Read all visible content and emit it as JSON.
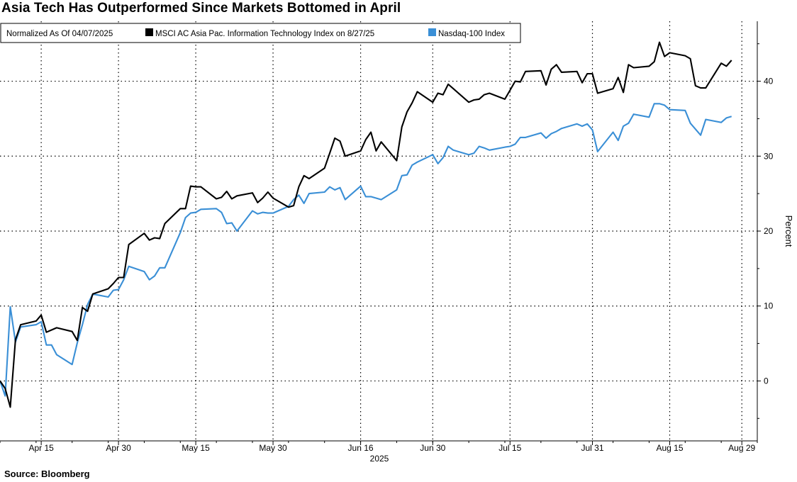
{
  "title": "Asia Tech Has Outperformed Since Markets Bottomed in April",
  "source": "Source: Bloomberg",
  "colors": {
    "msci": "#000000",
    "nasdaq": "#3a8fd6"
  },
  "chart_data": {
    "type": "line",
    "title": "Asia Tech Has Outperformed Since Markets Bottomed in April",
    "subtitle": "Normalized As Of 04/07/2025",
    "ylabel": "Percent",
    "year_label": "2025",
    "ylim": [
      -8,
      48
    ],
    "yticks": [
      0,
      10,
      20,
      30,
      40
    ],
    "grid": true,
    "legend": "top-left",
    "x_tick_labels": [
      "Apr 15",
      "Apr 30",
      "May 15",
      "May 30",
      "Jun 16",
      "Jun 30",
      "Jul 15",
      "Jul 31",
      "Aug 15",
      "Aug 29"
    ],
    "x_tick_dates": [
      "2025-04-15",
      "2025-04-30",
      "2025-05-15",
      "2025-05-30",
      "2025-06-16",
      "2025-06-30",
      "2025-07-15",
      "2025-07-31",
      "2025-08-15",
      "2025-08-29"
    ],
    "xlim": [
      "2025-04-07",
      "2025-09-01"
    ],
    "series": [
      {
        "name": "MSCI AC Asia Pac. Information Technology Index on 8/27/25",
        "dates": [
          "2025-04-07",
          "2025-04-08",
          "2025-04-09",
          "2025-04-10",
          "2025-04-11",
          "2025-04-14",
          "2025-04-15",
          "2025-04-16",
          "2025-04-17",
          "2025-04-18",
          "2025-04-21",
          "2025-04-22",
          "2025-04-23",
          "2025-04-24",
          "2025-04-25",
          "2025-04-28",
          "2025-04-29",
          "2025-04-30",
          "2025-05-01",
          "2025-05-02",
          "2025-05-05",
          "2025-05-06",
          "2025-05-07",
          "2025-05-08",
          "2025-05-09",
          "2025-05-12",
          "2025-05-13",
          "2025-05-14",
          "2025-05-15",
          "2025-05-16",
          "2025-05-19",
          "2025-05-20",
          "2025-05-21",
          "2025-05-22",
          "2025-05-23",
          "2025-05-26",
          "2025-05-27",
          "2025-05-28",
          "2025-05-29",
          "2025-05-30",
          "2025-06-02",
          "2025-06-03",
          "2025-06-04",
          "2025-06-05",
          "2025-06-06",
          "2025-06-09",
          "2025-06-10",
          "2025-06-11",
          "2025-06-12",
          "2025-06-13",
          "2025-06-16",
          "2025-06-17",
          "2025-06-18",
          "2025-06-19",
          "2025-06-20",
          "2025-06-23",
          "2025-06-24",
          "2025-06-25",
          "2025-06-26",
          "2025-06-27",
          "2025-06-30",
          "2025-07-01",
          "2025-07-02",
          "2025-07-03",
          "2025-07-04",
          "2025-07-07",
          "2025-07-08",
          "2025-07-09",
          "2025-07-10",
          "2025-07-11",
          "2025-07-14",
          "2025-07-15",
          "2025-07-16",
          "2025-07-17",
          "2025-07-18",
          "2025-07-21",
          "2025-07-22",
          "2025-07-23",
          "2025-07-24",
          "2025-07-25",
          "2025-07-28",
          "2025-07-29",
          "2025-07-30",
          "2025-07-31",
          "2025-08-01",
          "2025-08-04",
          "2025-08-05",
          "2025-08-06",
          "2025-08-07",
          "2025-08-08",
          "2025-08-11",
          "2025-08-12",
          "2025-08-13",
          "2025-08-14",
          "2025-08-15",
          "2025-08-18",
          "2025-08-19",
          "2025-08-20",
          "2025-08-21",
          "2025-08-22",
          "2025-08-25",
          "2025-08-26",
          "2025-08-27"
        ],
        "values": [
          0,
          -1.0,
          -3.5,
          5.5,
          7.5,
          8.0,
          8.8,
          6.5,
          6.8,
          7.1,
          6.6,
          5.4,
          9.8,
          9.3,
          11.6,
          12.3,
          13.0,
          13.8,
          13.8,
          18.2,
          19.7,
          18.8,
          19.1,
          19.0,
          21.0,
          23.0,
          23.0,
          26.0,
          25.9,
          25.9,
          24.3,
          24.5,
          25.3,
          24.3,
          24.7,
          25.1,
          23.8,
          24.4,
          25.2,
          24.4,
          23.2,
          23.4,
          25.9,
          27.4,
          27.0,
          28.4,
          30.4,
          32.4,
          32.0,
          30.0,
          30.7,
          32.2,
          33.2,
          30.7,
          31.9,
          29.4,
          33.9,
          35.9,
          37.1,
          38.6,
          37.2,
          38.4,
          38.2,
          39.6,
          39.0,
          37.2,
          37.5,
          37.6,
          38.2,
          38.4,
          37.6,
          38.8,
          40.0,
          39.9,
          41.3,
          41.4,
          39.5,
          41.6,
          42.2,
          41.2,
          41.3,
          39.8,
          41.0,
          41.0,
          38.4,
          39.0,
          40.5,
          38.5,
          42.2,
          41.8,
          42.0,
          42.6,
          45.2,
          43.3,
          43.8,
          43.4,
          43.0,
          39.4,
          39.1,
          39.1,
          42.4,
          42.0,
          42.8
        ]
      },
      {
        "name": "Nasdaq-100 Index",
        "dates": [
          "2025-04-07",
          "2025-04-08",
          "2025-04-09",
          "2025-04-10",
          "2025-04-11",
          "2025-04-14",
          "2025-04-15",
          "2025-04-16",
          "2025-04-17",
          "2025-04-18",
          "2025-04-21",
          "2025-04-22",
          "2025-04-23",
          "2025-04-24",
          "2025-04-25",
          "2025-04-28",
          "2025-04-29",
          "2025-04-30",
          "2025-05-01",
          "2025-05-02",
          "2025-05-05",
          "2025-05-06",
          "2025-05-07",
          "2025-05-08",
          "2025-05-09",
          "2025-05-12",
          "2025-05-13",
          "2025-05-14",
          "2025-05-15",
          "2025-05-16",
          "2025-05-19",
          "2025-05-20",
          "2025-05-21",
          "2025-05-22",
          "2025-05-23",
          "2025-05-26",
          "2025-05-27",
          "2025-05-28",
          "2025-05-29",
          "2025-05-30",
          "2025-06-02",
          "2025-06-03",
          "2025-06-04",
          "2025-06-05",
          "2025-06-06",
          "2025-06-09",
          "2025-06-10",
          "2025-06-11",
          "2025-06-12",
          "2025-06-13",
          "2025-06-16",
          "2025-06-17",
          "2025-06-18",
          "2025-06-19",
          "2025-06-20",
          "2025-06-23",
          "2025-06-24",
          "2025-06-25",
          "2025-06-26",
          "2025-06-27",
          "2025-06-30",
          "2025-07-01",
          "2025-07-02",
          "2025-07-03",
          "2025-07-04",
          "2025-07-07",
          "2025-07-08",
          "2025-07-09",
          "2025-07-10",
          "2025-07-11",
          "2025-07-14",
          "2025-07-15",
          "2025-07-16",
          "2025-07-17",
          "2025-07-18",
          "2025-07-21",
          "2025-07-22",
          "2025-07-23",
          "2025-07-24",
          "2025-07-25",
          "2025-07-28",
          "2025-07-29",
          "2025-07-30",
          "2025-07-31",
          "2025-08-01",
          "2025-08-04",
          "2025-08-05",
          "2025-08-06",
          "2025-08-07",
          "2025-08-08",
          "2025-08-11",
          "2025-08-12",
          "2025-08-13",
          "2025-08-14",
          "2025-08-15",
          "2025-08-18",
          "2025-08-19",
          "2025-08-20",
          "2025-08-21",
          "2025-08-22",
          "2025-08-25",
          "2025-08-26",
          "2025-08-27"
        ],
        "values": [
          0,
          -2.0,
          9.9,
          5.2,
          7.2,
          7.5,
          7.9,
          4.8,
          4.8,
          3.5,
          2.2,
          5.1,
          7.5,
          10.2,
          11.6,
          11.2,
          12.1,
          12.2,
          13.5,
          15.3,
          14.6,
          13.5,
          14.0,
          15.1,
          15.1,
          19.8,
          21.8,
          22.4,
          22.5,
          22.9,
          23.0,
          22.5,
          21.0,
          21.1,
          20.0,
          22.7,
          22.3,
          22.5,
          22.4,
          22.4,
          23.3,
          24.2,
          24.8,
          23.7,
          25.0,
          25.2,
          25.9,
          25.5,
          25.8,
          24.2,
          26.0,
          24.6,
          24.6,
          24.4,
          24.2,
          25.5,
          27.4,
          27.5,
          28.8,
          29.2,
          30.2,
          29.0,
          29.8,
          31.3,
          30.8,
          30.2,
          30.4,
          31.3,
          31.1,
          30.8,
          31.2,
          31.3,
          31.6,
          32.5,
          32.5,
          33.1,
          32.4,
          33.0,
          33.3,
          33.7,
          34.3,
          34.0,
          34.3,
          33.5,
          30.6,
          33.2,
          32.1,
          34.0,
          34.4,
          35.6,
          35.2,
          37.0,
          37.0,
          36.8,
          36.2,
          36.1,
          34.4,
          33.6,
          32.8,
          34.9,
          34.5,
          35.1,
          35.3
        ]
      }
    ]
  }
}
